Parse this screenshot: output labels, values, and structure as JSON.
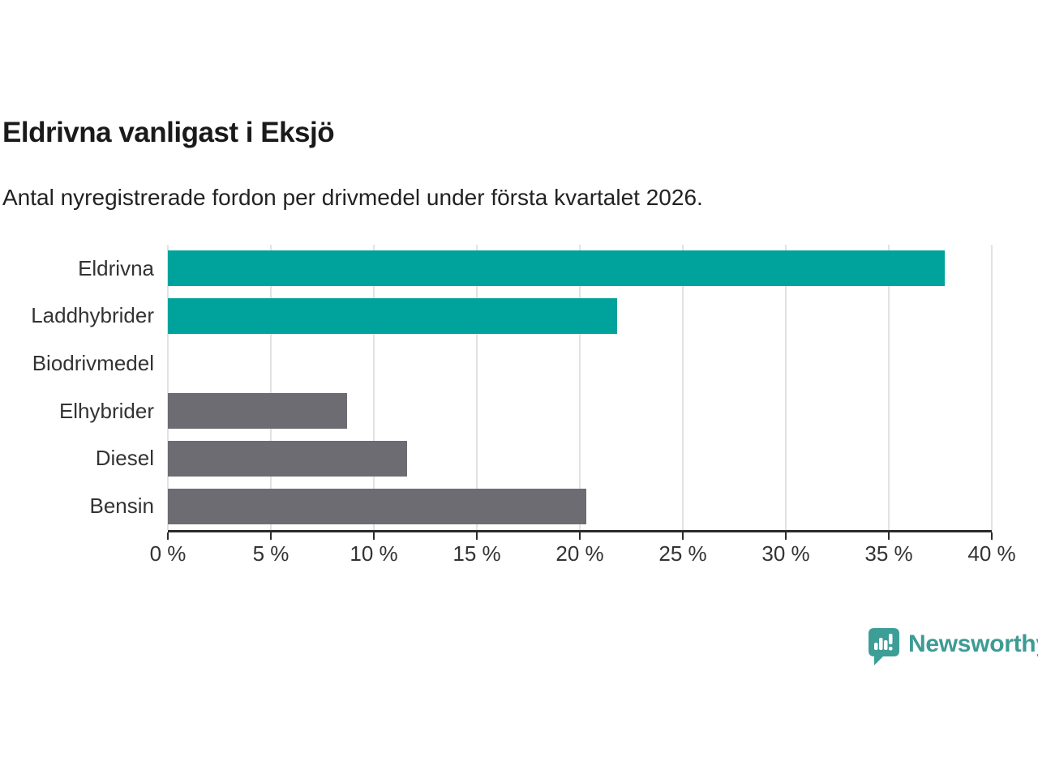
{
  "title": "Eldrivna vanligast i Eksjö",
  "subtitle": "Antal nyregistrerade fordon per drivmedel under första kvartalet 2026.",
  "chart_data": {
    "type": "bar",
    "orientation": "horizontal",
    "title": "Eldrivna vanligast i Eksjö",
    "subtitle": "Antal nyregistrerade fordon per drivmedel under första kvartalet 2026.",
    "categories": [
      "Eldrivna",
      "Laddhybrider",
      "Biodrivmedel",
      "Elhybrider",
      "Diesel",
      "Bensin"
    ],
    "values": [
      37.7,
      21.8,
      0,
      8.7,
      11.6,
      20.3
    ],
    "unit": "%",
    "xlim": [
      0,
      40
    ],
    "x_tick_step": 5,
    "x_tick_labels": [
      "0 %",
      "5 %",
      "10 %",
      "15 %",
      "20 %",
      "25 %",
      "30 %",
      "35 %",
      "40 %"
    ],
    "grid": true,
    "legend": "none",
    "bar_colors": [
      "#00A39B",
      "#00A39B",
      "#6D6C72",
      "#6D6C72",
      "#6D6C72",
      "#6D6C72"
    ],
    "highlight_color": "#00A39B",
    "default_color": "#6D6C72",
    "gridline_color": "#E2E2E2",
    "axis_color": "#2B2B2B"
  },
  "branding": {
    "logo_icon": "newsworthy-bubble-chart-icon",
    "logo_text": "Newsworthy",
    "logo_color": "#3D9B95"
  }
}
